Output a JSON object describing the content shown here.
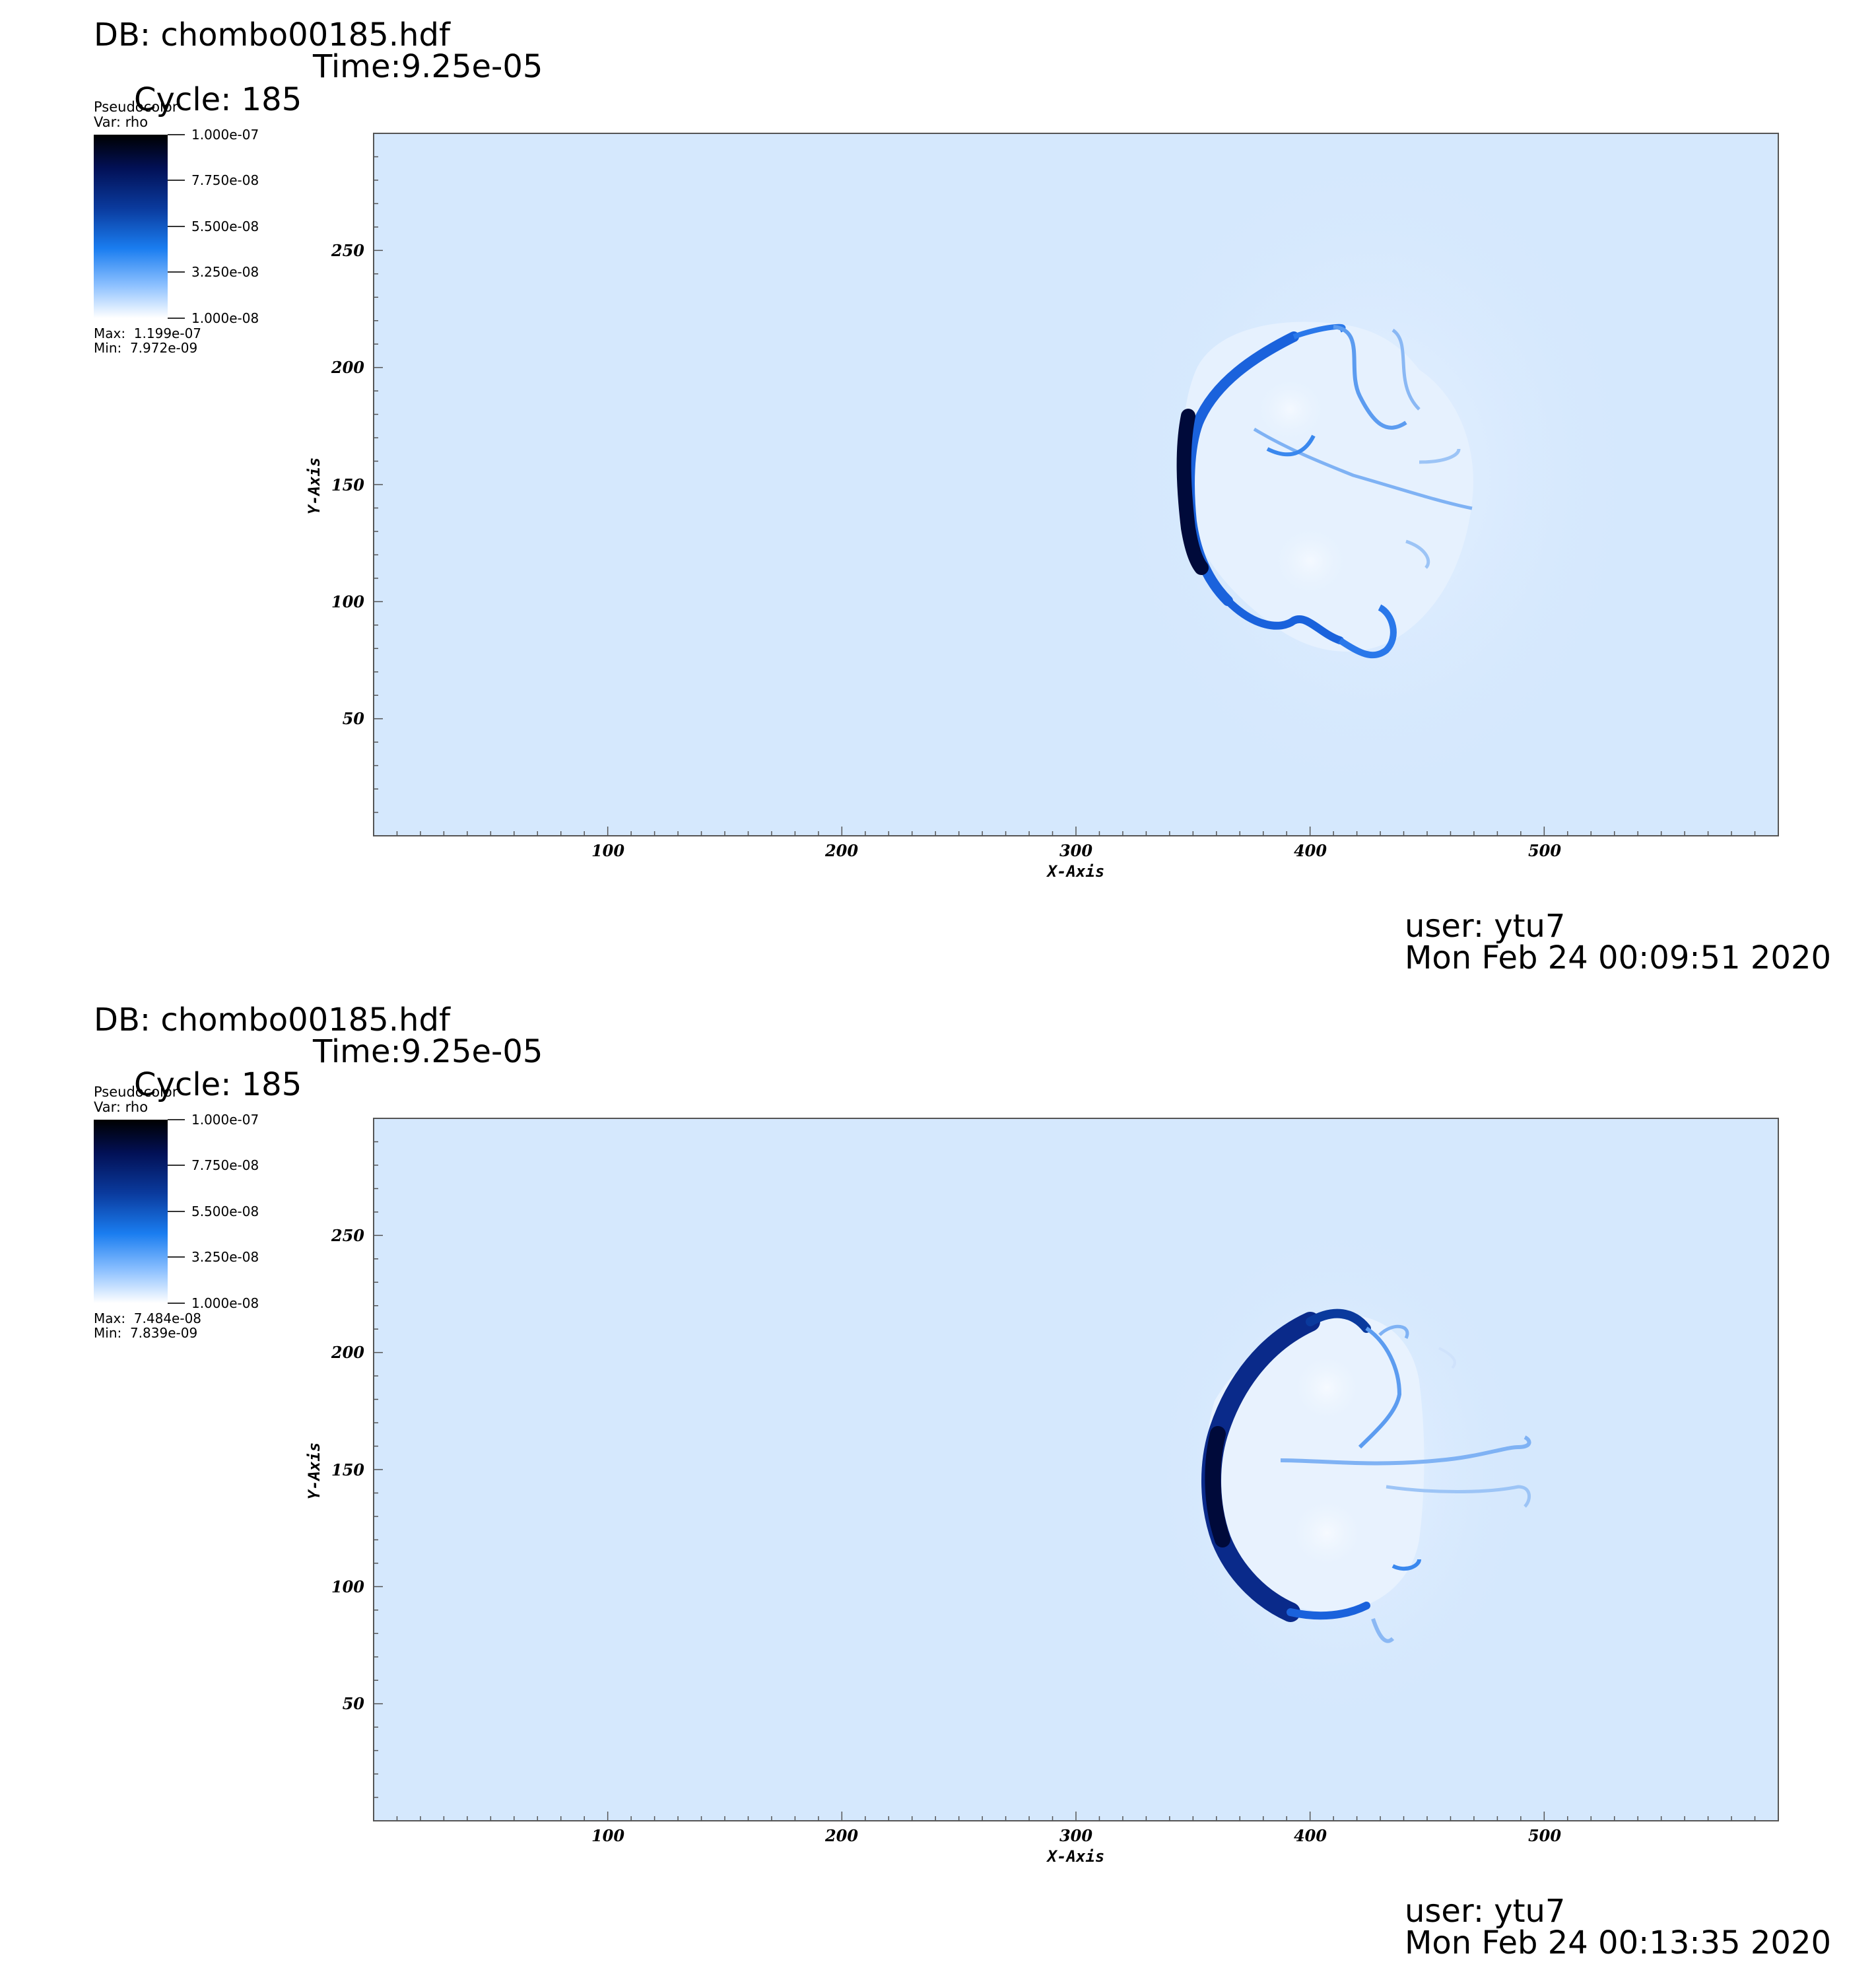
{
  "chart_data": [
    {
      "type": "heatmap",
      "db": "DB: chombo00185.hdf",
      "cycle": "Cycle: 185",
      "time": "Time:9.25e-05",
      "legend_title": "Pseudocolor",
      "legend_var": "Var: rho",
      "colorbar_labels": [
        "1.000e-07",
        "7.750e-08",
        "5.500e-08",
        "3.250e-08",
        "1.000e-08"
      ],
      "colorbar_range": [
        1e-08,
        1e-07
      ],
      "max_label": "Max:  1.199e-07",
      "min_label": "Min:  7.972e-09",
      "xlabel": "X-Axis",
      "ylabel": "Y-Axis",
      "xlim": [
        0,
        600
      ],
      "ylim": [
        0,
        300
      ],
      "xticks": [
        "100",
        "200",
        "300",
        "400",
        "500"
      ],
      "yticks": [
        "50",
        "100",
        "150",
        "200",
        "250"
      ],
      "user": "user: ytu7",
      "date": "Mon Feb 24 00:09:51 2020",
      "feature_description_note": null
    },
    {
      "type": "heatmap",
      "db": "DB: chombo00185.hdf",
      "cycle": "Cycle: 185",
      "time": "Time:9.25e-05",
      "legend_title": "Pseudocolor",
      "legend_var": "Var: rho",
      "colorbar_labels": [
        "1.000e-07",
        "7.750e-08",
        "5.500e-08",
        "3.250e-08",
        "1.000e-08"
      ],
      "colorbar_range": [
        1e-08,
        1e-07
      ],
      "max_label": "Max:  7.484e-08",
      "min_label": "Min:  7.839e-09",
      "xlabel": "X-Axis",
      "ylabel": "Y-Axis",
      "xlim": [
        0,
        600
      ],
      "ylim": [
        0,
        300
      ],
      "xticks": [
        "100",
        "200",
        "300",
        "400",
        "500"
      ],
      "yticks": [
        "50",
        "100",
        "150",
        "200",
        "250"
      ],
      "user": "user: ytu7",
      "date": "Mon Feb 24 00:13:35 2020"
    }
  ],
  "colors": {
    "background_field": "#d5e8fd",
    "dark_front": "#000a3a",
    "mid_blue": "#1560d8"
  }
}
